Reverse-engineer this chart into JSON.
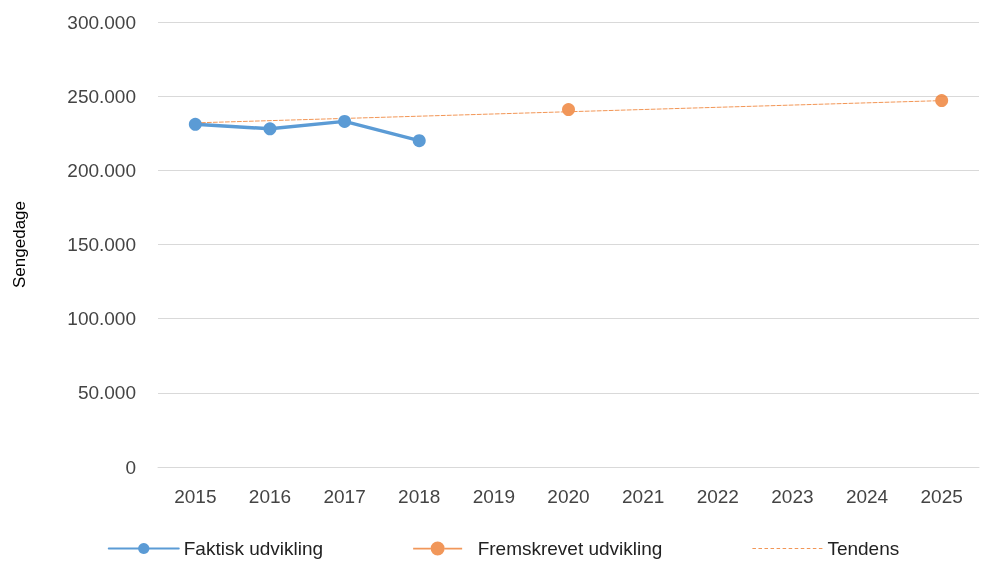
{
  "chart_data": {
    "type": "line",
    "ylabel": "Sengedage",
    "categories": [
      "2015",
      "2016",
      "2017",
      "2018",
      "2019",
      "2020",
      "2021",
      "2022",
      "2023",
      "2024",
      "2025"
    ],
    "series": [
      {
        "name": "Faktisk udvikling",
        "color": "#5b9bd5",
        "values": [
          231000,
          228000,
          233000,
          220000,
          null,
          null,
          null,
          null,
          null,
          null,
          null
        ],
        "marker": "circle",
        "line_style": "solid"
      },
      {
        "name": "Fremskrevet udvikling",
        "type": "scatter",
        "color": "#ed7d31",
        "values": [
          null,
          null,
          null,
          null,
          null,
          241000,
          null,
          null,
          null,
          null,
          247000
        ],
        "marker": "circle"
      },
      {
        "name": "Tendens",
        "color": "#f29656",
        "values": [
          232000,
          null,
          null,
          null,
          null,
          null,
          null,
          null,
          null,
          null,
          247000
        ],
        "marker": "none",
        "line_style": "dashed"
      }
    ],
    "ylim": [
      0,
      300000
    ],
    "yticks": [
      {
        "value": 0,
        "label": "0"
      },
      {
        "value": 50000,
        "label": "50.000"
      },
      {
        "value": 100000,
        "label": "100.000"
      },
      {
        "value": 150000,
        "label": "150.000"
      },
      {
        "value": 200000,
        "label": "200.000"
      },
      {
        "value": 250000,
        "label": "250.000"
      },
      {
        "value": 300000,
        "label": "300.000"
      }
    ],
    "grid": "y",
    "legend": "bottom"
  }
}
